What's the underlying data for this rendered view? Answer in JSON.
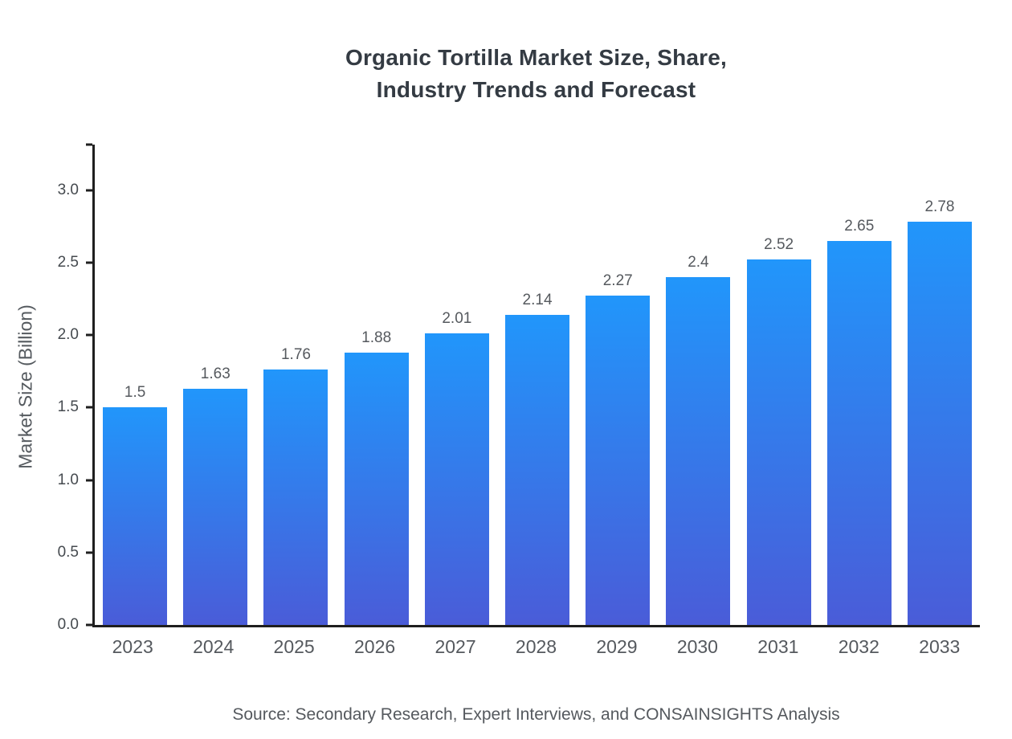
{
  "title": "Organic Tortilla Market Size, Share,\nIndustry Trends and Forecast",
  "source": "Source: Secondary Research, Expert Interviews, and CONSAINSIGHTS Analysis",
  "colors": {
    "bar_top": "#2196fb",
    "bar_bottom": "#4a5cd8",
    "axis": "#1f1f1f",
    "title_text": "#343b43",
    "label_text": "#55595e"
  },
  "chart_data": {
    "type": "bar",
    "title": "Organic Tortilla Market Size, Share,\nIndustry Trends and Forecast",
    "categories": [
      "2023",
      "2024",
      "2025",
      "2026",
      "2027",
      "2028",
      "2029",
      "2030",
      "2031",
      "2032",
      "2033"
    ],
    "values": [
      1.5,
      1.63,
      1.76,
      1.88,
      2.01,
      2.14,
      2.27,
      2.4,
      2.52,
      2.65,
      2.78
    ],
    "labels": [
      "1.5",
      "1.63",
      "1.76",
      "1.88",
      "2.01",
      "2.14",
      "2.27",
      "2.4",
      "2.52",
      "2.65",
      "2.78"
    ],
    "xlabel": "",
    "ylabel": "Market Size (Billion)",
    "ylim": [
      0,
      3.33
    ],
    "yticks": [
      0.0,
      0.5,
      1.0,
      1.5,
      2.0,
      2.5,
      3.0
    ],
    "ytick_labels": [
      "0.0",
      "0.5",
      "1.0",
      "1.5",
      "2.0",
      "2.5",
      "3.0"
    ],
    "grid": false,
    "legend": "none",
    "end_tick": true,
    "bar_gradient": {
      "top": "#2196fb",
      "bottom": "#4a5cd8"
    }
  }
}
